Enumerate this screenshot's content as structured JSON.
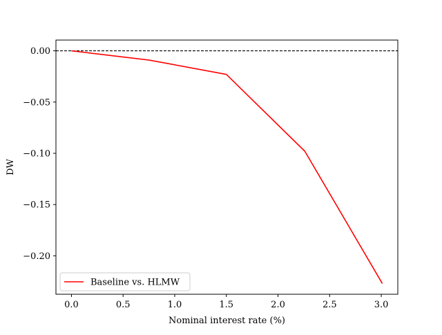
{
  "chart_data": {
    "type": "line",
    "xlabel": "Nominal interest rate (%)",
    "ylabel": "DW",
    "xlim": [
      -0.15,
      3.16
    ],
    "ylim": [
      -0.2375,
      0.0105
    ],
    "x_ticks": [
      0.0,
      0.5,
      1.0,
      1.5,
      2.0,
      2.5,
      3.0
    ],
    "x_tick_labels": [
      "0.0",
      "0.5",
      "1.0",
      "1.5",
      "2.0",
      "2.5",
      "3.0"
    ],
    "y_ticks": [
      0.0,
      -0.05,
      -0.1,
      -0.15,
      -0.2
    ],
    "y_tick_labels": [
      "0.00",
      "−0.05",
      "−0.10",
      "−0.15",
      "−0.20"
    ],
    "grid": false,
    "legend_position": "lower-left",
    "reference_line": {
      "y": 0.0,
      "style": "dashed",
      "color": "#000000"
    },
    "series": [
      {
        "name": "Baseline vs. HLMW",
        "color": "#ff0000",
        "x": [
          0.0,
          0.75,
          1.5,
          2.26,
          3.01
        ],
        "y": [
          0.0,
          -0.009,
          -0.023,
          -0.098,
          -0.227
        ]
      }
    ]
  }
}
